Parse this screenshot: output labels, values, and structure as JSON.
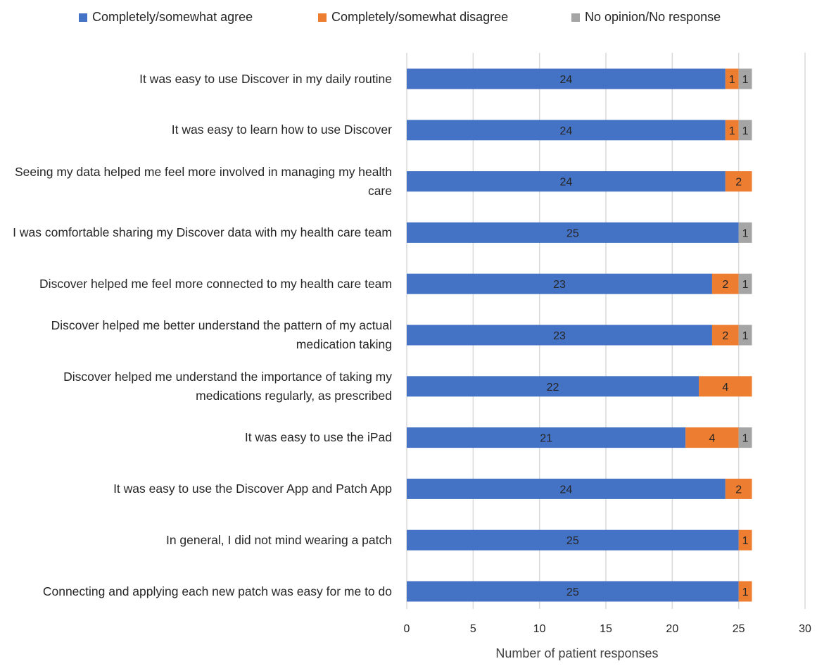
{
  "chart_data": {
    "type": "bar",
    "orientation": "horizontal",
    "stacked": true,
    "categories": [
      "It was easy to use Discover in my daily routine",
      "It was easy to learn how to use Discover",
      "Seeing my data helped me feel more involved in managing my health care",
      "I was comfortable sharing my Discover data with my health care team",
      "Discover helped me feel more connected to my health care team",
      "Discover helped me better understand the pattern of my actual medication taking",
      "Discover helped me understand the importance of taking my medications regularly, as prescribed",
      "It was easy to use the iPad",
      "It was easy to use the Discover App and Patch App",
      "In general, I did not mind wearing a patch",
      "Connecting and applying each new patch was easy for me to do"
    ],
    "series": [
      {
        "name": "Completely/somewhat agree",
        "color": "#4472C4",
        "values": [
          24,
          24,
          24,
          25,
          23,
          23,
          22,
          21,
          24,
          25,
          25
        ]
      },
      {
        "name": "Completely/somewhat disagree",
        "color": "#ED7D31",
        "values": [
          1,
          1,
          2,
          0,
          2,
          2,
          4,
          4,
          2,
          1,
          1
        ]
      },
      {
        "name": "No opinion/No response",
        "color": "#A5A5A5",
        "values": [
          1,
          1,
          0,
          1,
          1,
          1,
          0,
          1,
          0,
          0,
          0
        ]
      }
    ],
    "xlabel": "Number of patient responses",
    "ylabel": "",
    "xlim": [
      0,
      30
    ],
    "xticks": [
      "0",
      "5",
      "10",
      "15",
      "20",
      "25",
      "30"
    ],
    "grid": "vertical",
    "legend": "top"
  }
}
